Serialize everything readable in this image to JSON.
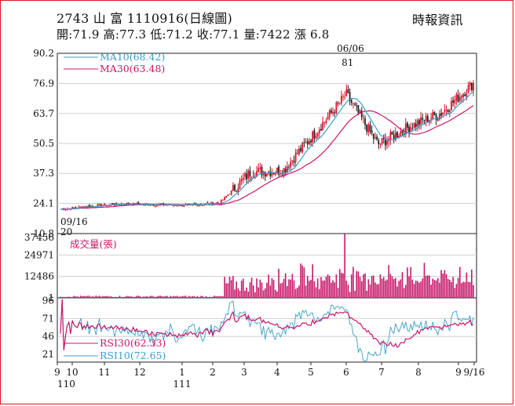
{
  "header": {
    "title": "2743 山 富 1110916(日線圖)",
    "source": "時報資訊",
    "stats": "開:71.9 高:77.3 低:71.2 收:77.1 量:7422 漲 6.8"
  },
  "colors": {
    "up": "#e0102a",
    "down": "#222222",
    "ma10": "#3a9ec8",
    "ma30": "#c8186a",
    "volume": "#c8186a",
    "rsi30": "#c8186a",
    "rsi10": "#3a9ec8",
    "grid": "#d0d0d0"
  },
  "chart_data": [
    {
      "type": "candlestick",
      "name": "price",
      "y_ticks": [
        "90.2",
        "76.9",
        "63.7",
        "50.5",
        "37.3",
        "24.1",
        "10.8"
      ],
      "ylim": [
        10.8,
        90.2
      ],
      "legend": [
        {
          "label": "MA10(68.42)",
          "color": "#3a9ec8"
        },
        {
          "label": "MA30(63.48)",
          "color": "#c8186a"
        }
      ],
      "annotations": [
        {
          "date": "06/06",
          "value": "81",
          "text_date": "06/06",
          "text_value": "81"
        },
        {
          "date": "09/16",
          "value": "20",
          "text_date": "09/16",
          "text_value": "20"
        }
      ],
      "high_point": {
        "date": "06/06",
        "price": 81
      },
      "low_point": {
        "date": "09/16",
        "price": 20
      },
      "last": {
        "open": 71.9,
        "high": 77.3,
        "low": 71.2,
        "close": 77.1
      },
      "ma_last": {
        "ma10": 68.42,
        "ma30": 63.48
      },
      "closes_monthly": [
        {
          "month": "9/110",
          "close": 21.5
        },
        {
          "month": "10",
          "close": 23.0
        },
        {
          "month": "11",
          "close": 24.0
        },
        {
          "month": "12",
          "close": 23.5
        },
        {
          "month": "1/111",
          "close": 23.3
        },
        {
          "month": "2",
          "close": 24.2
        },
        {
          "month": "3",
          "close": 38.0
        },
        {
          "month": "4",
          "close": 38.5
        },
        {
          "month": "5",
          "close": 55.0
        },
        {
          "month": "6",
          "close": 72.0
        },
        {
          "month": "7",
          "close": 50.0
        },
        {
          "month": "8",
          "close": 58.0
        },
        {
          "month": "9",
          "close": 64.0
        },
        {
          "month": "9/16",
          "close": 77.1
        }
      ]
    },
    {
      "type": "bar",
      "name": "volume",
      "label": "成交量(張)",
      "y_ticks": [
        "37456",
        "24971",
        "12486",
        "1"
      ],
      "ylim": [
        1,
        37456
      ],
      "last_volume": 7422,
      "peak": {
        "date": "06/06",
        "value": 37456
      }
    },
    {
      "type": "line",
      "name": "rsi",
      "y_ticks": [
        "96",
        "71",
        "46",
        "21"
      ],
      "ylim": [
        10,
        100
      ],
      "series": [
        {
          "name": "RSI30(62.33)",
          "color": "#c8186a",
          "last": 62.33
        },
        {
          "name": "RSI10(72.65)",
          "color": "#3a9ec8",
          "last": 72.65
        }
      ]
    },
    {
      "type": "axis",
      "name": "time-axis",
      "x_ticks": [
        "9",
        "10",
        "11",
        "12",
        "1",
        "2",
        "3",
        "4",
        "5",
        "6",
        "7",
        "8",
        "9",
        "9/16"
      ],
      "year_labels": [
        "110",
        "111"
      ]
    }
  ]
}
